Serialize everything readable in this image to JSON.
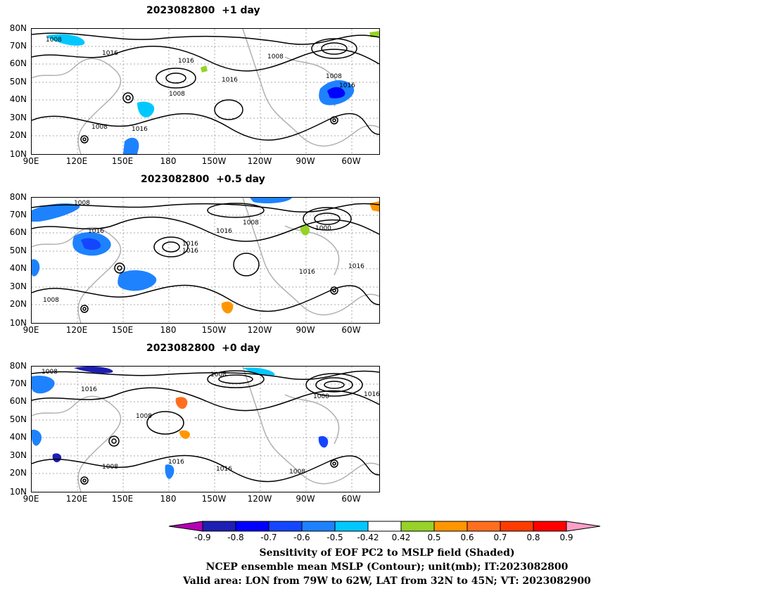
{
  "panels": [
    {
      "title": "2023082800  +1 day",
      "contour_labels": [
        "1008",
        "1016",
        "1008",
        "1016",
        "1016",
        "1008",
        "1016",
        "1008",
        "1016",
        "1008"
      ]
    },
    {
      "title": "2023082800  +0.5 day",
      "contour_labels": [
        "1008",
        "1016",
        "1008",
        "1016",
        "1016",
        "1016",
        "1000",
        "1016",
        "1016",
        "1008"
      ]
    },
    {
      "title": "2023082800  +0 day",
      "contour_labels": [
        "1008",
        "1016",
        "1008",
        "1008",
        "1000",
        "1016",
        "1016",
        "1016",
        "1008",
        "1008"
      ]
    }
  ],
  "axes": {
    "lat_ticks": [
      "80N",
      "70N",
      "60N",
      "50N",
      "40N",
      "30N",
      "20N",
      "10N"
    ],
    "lon_ticks": [
      "90E",
      "120E",
      "150E",
      "180",
      "150W",
      "120W",
      "90W",
      "60W"
    ],
    "lat_range": [
      10,
      80
    ],
    "lon_range": [
      "90E",
      "50W"
    ]
  },
  "colorbar": {
    "tick_labels": [
      "-0.9",
      "-0.8",
      "-0.7",
      "-0.6",
      "-0.5",
      "-0.42",
      "0.42",
      "0.5",
      "0.6",
      "0.7",
      "0.8",
      "0.9"
    ],
    "colors": [
      "#b400b4",
      "#1e1eb4",
      "#0000ff",
      "#1446ff",
      "#1e82ff",
      "#00c8ff",
      "#ffffff",
      "#96d228",
      "#ff9600",
      "#ff6e1e",
      "#ff3c00",
      "#ff0000",
      "#ffa0c8"
    ]
  },
  "caption": {
    "line1": "Sensitivity of EOF PC2 to MSLP field (Shaded)",
    "line2": "NCEP ensemble mean MSLP (Contour); unit(mb); IT:2023082800",
    "line3": "Valid area: LON from 79W to 62W, LAT from 32N to 45N; VT: 2023082900"
  }
}
